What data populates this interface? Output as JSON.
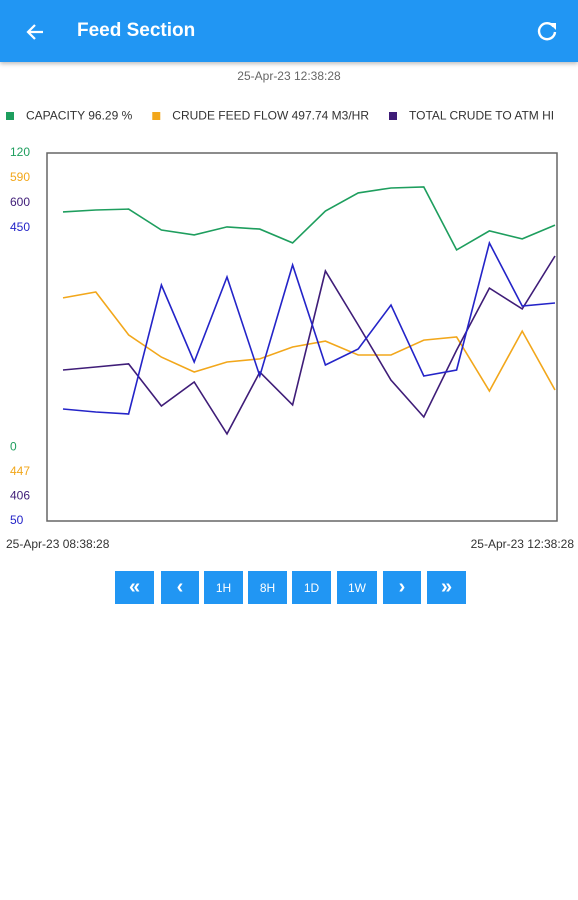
{
  "header": {
    "title": "Feed Section"
  },
  "timestamp": "25-Apr-23 12:38:28",
  "chart_data": {
    "type": "line",
    "categories": [
      "25-Apr-23 08:38:28",
      null,
      null,
      null,
      null,
      null,
      null,
      null,
      null,
      null,
      null,
      null,
      null,
      null,
      null,
      "25-Apr-23 12:38:28"
    ],
    "series": [
      {
        "name": "CAPACITY 96.29 %",
        "color": "#1e9e5e",
        "ylim": [
          0,
          120
        ],
        "values": [
          100.8,
          101.4,
          101.7,
          94.9,
          93.3,
          95.9,
          95.2,
          90.7,
          101.1,
          107.0,
          108.6,
          108.9,
          88.4,
          94.6,
          92.0,
          96.5
        ]
      },
      {
        "name": "CRUDE FEED FLOW 497.74 M3/HR",
        "color": "#f2a71b",
        "ylim": [
          447,
          590
        ],
        "values": [
          533.7,
          536.0,
          519.3,
          510.7,
          504.9,
          508.8,
          510.0,
          514.6,
          516.9,
          511.5,
          511.5,
          517.3,
          518.5,
          497.5,
          520.8,
          497.9
        ]
      },
      {
        "name": "TOTAL CRUDE TO ATM HI",
        "color": "#3f1d78",
        "ylim": [
          406,
          600
        ],
        "values": [
          485.6,
          487.2,
          488.8,
          466.6,
          479.3,
          451.9,
          484.5,
          467.2,
          537.8,
          509.3,
          480.3,
          460.8,
          496.1,
          528.8,
          517.8,
          545.7
        ]
      },
      {
        "color": "#2424c8",
        "ylim": [
          50,
          450
        ],
        "values": [
          171.7,
          168.5,
          166.3,
          306.5,
          222.8,
          315.2,
          207.6,
          328.3,
          219.6,
          237.0,
          284.8,
          207.6,
          214.1,
          352.2,
          283.7,
          287.0
        ]
      }
    ]
  },
  "buttons": [
    "«",
    "‹",
    "1H",
    "8H",
    "1D",
    "1W",
    "›",
    "»"
  ]
}
